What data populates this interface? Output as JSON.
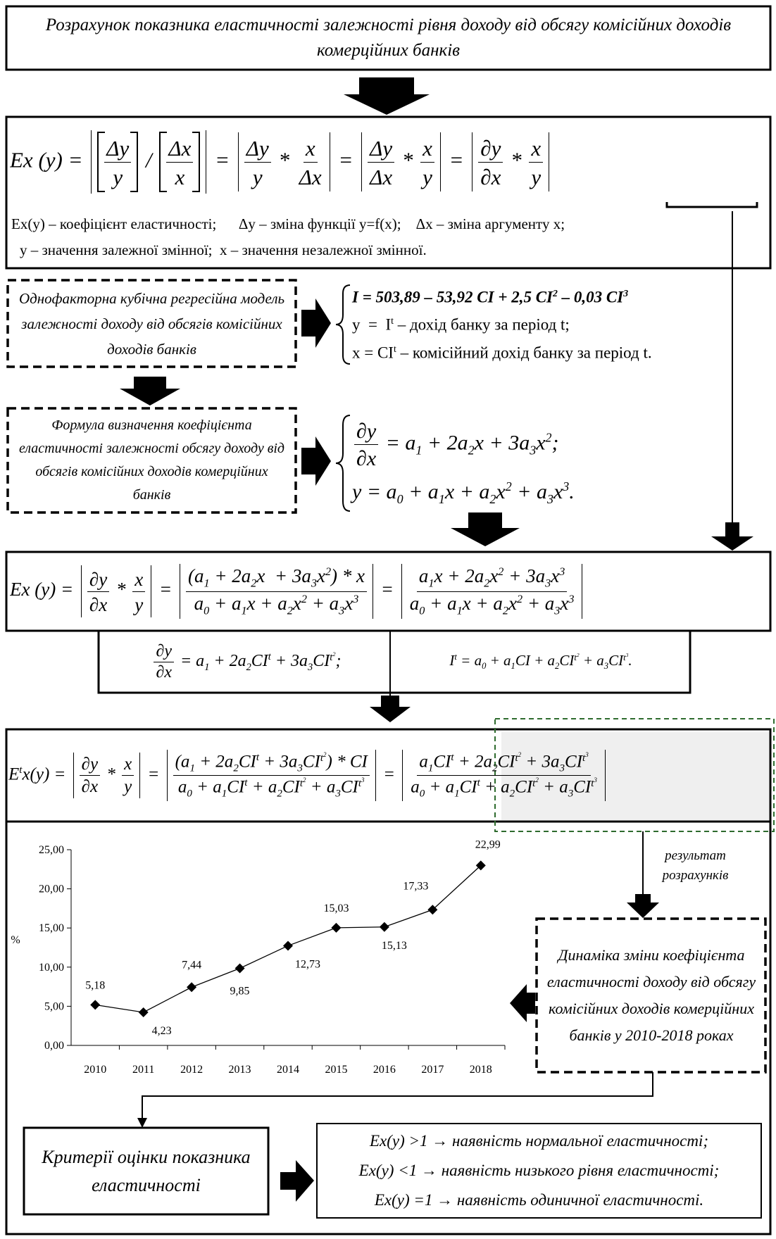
{
  "title": "Розрахунок показника еластичності  залежності рівня доходу від обсягу комісійних доходів комерційних банків",
  "elasticity_definition": {
    "formula": [
      "Ex (y) = ",
      {
        "abs": [
          {
            "sq": [
              {
                "f": [
                  [
                    "Δy"
                  ],
                  [
                    "y"
                  ]
                ]
              }
            ]
          },
          " / ",
          {
            "sq": [
              {
                "f": [
                  [
                    "Δx"
                  ],
                  [
                    "x"
                  ]
                ]
              }
            ]
          }
        ]
      },
      " = ",
      {
        "abs": [
          {
            "f": [
              [
                "Δy"
              ],
              [
                "y"
              ]
            ]
          },
          " * ",
          {
            "f": [
              [
                "x"
              ],
              [
                "Δx"
              ]
            ]
          }
        ]
      },
      " = ",
      {
        "abs": [
          {
            "f": [
              [
                "Δy"
              ],
              [
                "Δx"
              ]
            ]
          },
          " * ",
          {
            "f": [
              [
                "x"
              ],
              [
                "y"
              ]
            ]
          }
        ]
      },
      " = ",
      {
        "abs": [
          {
            "f": [
              [
                "∂y"
              ],
              [
                "∂x"
              ]
            ]
          },
          " * ",
          {
            "f": [
              [
                "x"
              ],
              [
                "y"
              ]
            ]
          }
        ]
      }
    ],
    "legend": [
      "Ex(y) – коефіцієнт еластичності;      Δy – зміна функції y=f(x);    Δx – зміна аргументу x;",
      "y – значення залежної змінної;  x – значення незалежної змінної."
    ]
  },
  "regression_model": {
    "label": "Однофакторна кубічна регресійна модель залежності доходу від обсягів комісійних доходів  банків",
    "system": [
      [
        "I = 503,89 – 53,92 CI + 2,5 CI",
        {
          "sup": "2"
        },
        " – 0,03 CI",
        {
          "sup": "3"
        }
      ],
      [
        "y  =  I",
        {
          "sup": "t"
        },
        " – дохід банку за період t;"
      ],
      [
        "x = CI",
        {
          "sup": "t"
        },
        " – комісійний дохід банку за період t."
      ]
    ]
  },
  "elasticity_formula": {
    "label": "Формула визначення  коефіцієнта еластичності  залежності обсягу доходу від обсягів комісійних доходів комерційних банків",
    "system": [
      [
        {
          "f": [
            [
              "∂y"
            ],
            [
              "∂x"
            ]
          ]
        },
        " = a",
        {
          "sub": "1"
        },
        " + 2a",
        {
          "sub": "2"
        },
        "x + 3a",
        {
          "sub": "3"
        },
        "x",
        {
          "sup": "2"
        },
        ";"
      ],
      [
        "y = a",
        {
          "sub": "0"
        },
        " + a",
        {
          "sub": "1"
        },
        "x + a",
        {
          "sub": "2"
        },
        "x",
        {
          "sup": "2"
        },
        " + a",
        {
          "sub": "3"
        },
        "x",
        {
          "sup": "3"
        },
        "."
      ]
    ]
  },
  "elasticity_expanded": [
    "Ex (y) = ",
    {
      "abs": [
        {
          "f": [
            [
              "∂y"
            ],
            [
              "∂x"
            ]
          ]
        },
        " * ",
        {
          "f": [
            [
              "x"
            ],
            [
              "y"
            ]
          ]
        }
      ]
    },
    " = ",
    {
      "abs": [
        {
          "f": [
            [
              "(a",
              {
                "sub": "1"
              },
              " + 2a",
              {
                "sub": "2"
              },
              "x  + 3a",
              {
                "sub": "3"
              },
              "x",
              {
                "sup": "2"
              },
              ") * x"
            ],
            [
              "a",
              {
                "sub": "0"
              },
              " + a",
              {
                "sub": "1"
              },
              "x + a",
              {
                "sub": "2"
              },
              "x",
              {
                "sup": "2"
              },
              " + a",
              {
                "sub": "3"
              },
              "x",
              {
                "sup": "3"
              }
            ]
          ]
        }
      ]
    },
    " = ",
    {
      "abs": [
        {
          "f": [
            [
              "a",
              {
                "sub": "1"
              },
              "x + 2a",
              {
                "sub": "2"
              },
              "x",
              {
                "sup": "2"
              },
              " + 3a",
              {
                "sub": "3"
              },
              "x",
              {
                "sup": "3"
              }
            ],
            [
              "a",
              {
                "sub": "0"
              },
              " + a",
              {
                "sub": "1"
              },
              "x + a",
              {
                "sub": "2"
              },
              "x",
              {
                "sup": "2"
              },
              " + a",
              {
                "sub": "3"
              },
              "x",
              {
                "sup": "3"
              }
            ]
          ]
        }
      ]
    }
  ],
  "substitution": [
    [
      {
        "f": [
          [
            "∂y"
          ],
          [
            "∂x"
          ]
        ]
      },
      " = a",
      {
        "sub": "1"
      },
      " + 2a",
      {
        "sub": "2"
      },
      "CI",
      {
        "sup": "t"
      },
      " + 3a",
      {
        "sub": "3"
      },
      "CI",
      {
        "sup": [
          "t",
          {
            "sup": "2"
          }
        ]
      },
      ";"
    ],
    [
      "I",
      {
        "sup": "t"
      },
      " = a",
      {
        "sub": "0"
      },
      " + a",
      {
        "sub": "1"
      },
      "CI + a",
      {
        "sub": "2"
      },
      "CI",
      {
        "sup": [
          "t",
          {
            "sup": "2"
          }
        ]
      },
      " + a",
      {
        "sub": "3"
      },
      "CI",
      {
        "sup": [
          "t",
          {
            "sup": "3"
          }
        ]
      },
      "."
    ]
  ],
  "elasticity_period": [
    "E",
    {
      "sup": "t"
    },
    "x(y) = ",
    {
      "abs": [
        {
          "f": [
            [
              "∂y"
            ],
            [
              "∂x"
            ]
          ]
        },
        " * ",
        {
          "f": [
            [
              "x"
            ],
            [
              "y"
            ]
          ]
        }
      ]
    },
    " = ",
    {
      "abs": [
        {
          "f": [
            [
              "(a",
              {
                "sub": "1"
              },
              " + 2a",
              {
                "sub": "2"
              },
              "CI",
              {
                "sup": "t"
              },
              " + 3a",
              {
                "sub": "3"
              },
              "CI",
              {
                "sup": [
                  "t",
                  {
                    "sup": "2"
                  }
                ]
              },
              ") * CI"
            ],
            [
              "a",
              {
                "sub": "0"
              },
              " + a",
              {
                "sub": "1"
              },
              "CI",
              {
                "sup": "t"
              },
              " + a",
              {
                "sub": "2"
              },
              "CI",
              {
                "sup": [
                  "t",
                  {
                    "sup": "2"
                  }
                ]
              },
              " + a",
              {
                "sub": "3"
              },
              "CI",
              {
                "sup": [
                  "t",
                  {
                    "sup": "3"
                  }
                ]
              }
            ]
          ]
        }
      ]
    },
    " = ",
    {
      "abs": [
        {
          "f": [
            [
              "a",
              {
                "sub": "1"
              },
              "CI",
              {
                "sup": "t"
              },
              " + 2a",
              {
                "sub": "2"
              },
              "CI",
              {
                "sup": [
                  "t",
                  {
                    "sup": "2"
                  }
                ]
              },
              " + 3a",
              {
                "sub": "3"
              },
              "CI",
              {
                "sup": [
                  "t",
                  {
                    "sup": "3"
                  }
                ]
              }
            ],
            [
              "a",
              {
                "sub": "0"
              },
              " + a",
              {
                "sub": "1"
              },
              "CI",
              {
                "sup": "t"
              },
              " + a",
              {
                "sub": "2"
              },
              "CI",
              {
                "sup": [
                  "t",
                  {
                    "sup": "2"
                  }
                ]
              },
              " + a",
              {
                "sub": "3"
              },
              "CI",
              {
                "sup": [
                  "t",
                  {
                    "sup": "3"
                  }
                ]
              }
            ]
          ]
        }
      ]
    }
  ],
  "result_note": "результат розрахунків",
  "chart_caption": "Динаміка зміни коефіцієнта еластичності доходу від обсягу комісійних доходів комерційних банків  у 2010-2018 роках",
  "chart_data": {
    "type": "line",
    "y_label": "%",
    "categories": [
      "2010",
      "2011",
      "2012",
      "2013",
      "2014",
      "2015",
      "2016",
      "2017",
      "2018"
    ],
    "series": [
      {
        "color": "#000000",
        "values": [
          5.18,
          4.23,
          7.44,
          9.85,
          12.73,
          15.03,
          15.13,
          17.33,
          22.99
        ],
        "value_labels": [
          "5,18",
          "4,23",
          "7,44",
          "9,85",
          "12,73",
          "15,03",
          "15,13",
          "17,33",
          "22,99"
        ]
      }
    ],
    "ylim": [
      0,
      25
    ],
    "yticks": [
      {
        "value": 0,
        "label": "0,00"
      },
      {
        "value": 5,
        "label": "5,00"
      },
      {
        "value": 10,
        "label": "10,00"
      },
      {
        "value": 15,
        "label": "15,00"
      },
      {
        "value": 20,
        "label": "20,00"
      },
      {
        "value": 25,
        "label": "25,00"
      }
    ],
    "grid": false,
    "marker": "diamond"
  },
  "criteria": {
    "label": "Критерії оцінки показника еластичності",
    "rules": [
      "Ex(y) >1 → наявність нормальної еластичності;",
      "Ex(y) <1 → наявність низького рівня  еластичності;",
      "Ex(y) =1 → наявність одиничної  еластичності."
    ]
  }
}
